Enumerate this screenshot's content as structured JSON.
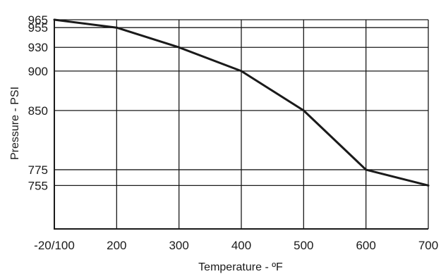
{
  "chart_data": {
    "type": "line",
    "title": "",
    "xlabel": "Temperature - ºF",
    "ylabel": "Pressure - PSI",
    "x_ticks": [
      "-20/100",
      "200",
      "300",
      "400",
      "500",
      "600",
      "700"
    ],
    "y_ticks": [
      965,
      955,
      930,
      900,
      850,
      775,
      755
    ],
    "ylim": [
      700,
      965
    ],
    "grid": true,
    "series": [
      {
        "x": [
          "-20/100",
          "200",
          "300",
          "400",
          "500",
          "600",
          "700"
        ],
        "y": [
          965,
          955,
          930,
          900,
          850,
          775,
          755
        ]
      }
    ]
  }
}
